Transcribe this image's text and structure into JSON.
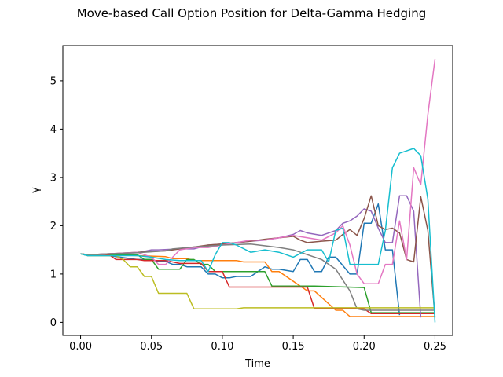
{
  "chart_data": {
    "type": "line",
    "title": "Move-based Call Option Position for Delta-Gamma Hedging",
    "xlabel": "Time",
    "ylabel": "γ",
    "xlim": [
      -0.0125,
      0.2625
    ],
    "ylim": [
      -0.27,
      5.73
    ],
    "xticks": [
      0.0,
      0.05,
      0.1,
      0.15,
      0.2,
      0.25
    ],
    "xtick_labels": [
      "0.00",
      "0.05",
      "0.10",
      "0.15",
      "0.20",
      "0.25"
    ],
    "yticks": [
      0,
      1,
      2,
      3,
      4,
      5
    ],
    "ytick_labels": [
      "0",
      "1",
      "2",
      "3",
      "4",
      "5"
    ],
    "grid": false,
    "legend": "none",
    "series": [
      {
        "color": "#1f77b4",
        "x": [
          0.0,
          0.005,
          0.02,
          0.04,
          0.05,
          0.055,
          0.06,
          0.065,
          0.07,
          0.075,
          0.085,
          0.09,
          0.095,
          0.1,
          0.105,
          0.11,
          0.12,
          0.13,
          0.135,
          0.14,
          0.15,
          0.155,
          0.16,
          0.165,
          0.17,
          0.175,
          0.18,
          0.19,
          0.195,
          0.2,
          0.205,
          0.21,
          0.215,
          0.22,
          0.225
        ],
        "y": [
          1.42,
          1.38,
          1.38,
          1.3,
          1.3,
          1.26,
          1.26,
          1.2,
          1.2,
          1.15,
          1.15,
          1.0,
          1.0,
          0.92,
          0.92,
          0.95,
          0.95,
          1.15,
          1.1,
          1.1,
          1.05,
          1.3,
          1.3,
          1.05,
          1.05,
          1.35,
          1.35,
          1.0,
          1.0,
          2.05,
          2.05,
          2.45,
          1.5,
          1.5,
          0.15
        ]
      },
      {
        "color": "#ff7f0e",
        "x": [
          0.0,
          0.005,
          0.02,
          0.04,
          0.06,
          0.065,
          0.075,
          0.08,
          0.11,
          0.115,
          0.13,
          0.135,
          0.14,
          0.16,
          0.165,
          0.18,
          0.185,
          0.19,
          0.22,
          0.25
        ],
        "y": [
          1.42,
          1.4,
          1.4,
          1.38,
          1.36,
          1.32,
          1.32,
          1.28,
          1.28,
          1.25,
          1.25,
          1.05,
          1.05,
          0.65,
          0.65,
          0.25,
          0.25,
          0.12,
          0.12,
          0.12
        ]
      },
      {
        "color": "#2ca02c",
        "x": [
          0.0,
          0.005,
          0.04,
          0.045,
          0.05,
          0.055,
          0.07,
          0.075,
          0.08,
          0.085,
          0.09,
          0.095,
          0.1,
          0.13,
          0.135,
          0.16,
          0.165,
          0.2,
          0.205,
          0.25
        ],
        "y": [
          1.42,
          1.4,
          1.4,
          1.3,
          1.3,
          1.1,
          1.1,
          1.3,
          1.3,
          1.2,
          1.2,
          1.05,
          1.05,
          1.05,
          0.75,
          0.75,
          0.75,
          0.72,
          0.2,
          0.2
        ]
      },
      {
        "color": "#d62728",
        "x": [
          0.0,
          0.005,
          0.02,
          0.025,
          0.04,
          0.045,
          0.06,
          0.07,
          0.085,
          0.09,
          0.1,
          0.105,
          0.12,
          0.14,
          0.16,
          0.165,
          0.2,
          0.205,
          0.25
        ],
        "y": [
          1.42,
          1.4,
          1.4,
          1.3,
          1.3,
          1.28,
          1.28,
          1.22,
          1.22,
          1.05,
          1.05,
          0.73,
          0.73,
          0.73,
          0.73,
          0.28,
          0.28,
          0.18,
          0.18
        ]
      },
      {
        "color": "#9467bd",
        "x": [
          0.0,
          0.005,
          0.02,
          0.04,
          0.05,
          0.055,
          0.07,
          0.08,
          0.09,
          0.1,
          0.11,
          0.12,
          0.13,
          0.14,
          0.15,
          0.155,
          0.16,
          0.17,
          0.175,
          0.18,
          0.185,
          0.19,
          0.195,
          0.2,
          0.205,
          0.21,
          0.215,
          0.22,
          0.225,
          0.23,
          0.235,
          0.24
        ],
        "y": [
          1.42,
          1.4,
          1.42,
          1.44,
          1.5,
          1.5,
          1.52,
          1.52,
          1.6,
          1.62,
          1.65,
          1.68,
          1.7,
          1.75,
          1.82,
          1.9,
          1.85,
          1.8,
          1.85,
          1.9,
          2.05,
          2.1,
          2.2,
          2.35,
          2.3,
          1.95,
          1.65,
          1.65,
          2.62,
          2.62,
          2.3,
          0.1
        ]
      },
      {
        "color": "#8c564b",
        "x": [
          0.0,
          0.005,
          0.02,
          0.04,
          0.06,
          0.07,
          0.08,
          0.09,
          0.1,
          0.11,
          0.12,
          0.13,
          0.14,
          0.15,
          0.155,
          0.16,
          0.17,
          0.18,
          0.185,
          0.19,
          0.195,
          0.2,
          0.205,
          0.21,
          0.215,
          0.22,
          0.225,
          0.23,
          0.235,
          0.24,
          0.245,
          0.25
        ],
        "y": [
          1.42,
          1.4,
          1.42,
          1.45,
          1.48,
          1.52,
          1.56,
          1.6,
          1.62,
          1.65,
          1.68,
          1.72,
          1.75,
          1.78,
          1.7,
          1.65,
          1.68,
          1.7,
          1.82,
          1.92,
          1.8,
          2.15,
          2.62,
          2.0,
          1.92,
          1.95,
          1.85,
          1.3,
          1.25,
          2.6,
          1.9,
          0.1
        ]
      },
      {
        "color": "#e377c2",
        "x": [
          0.0,
          0.005,
          0.02,
          0.04,
          0.05,
          0.055,
          0.06,
          0.07,
          0.08,
          0.09,
          0.1,
          0.11,
          0.12,
          0.13,
          0.14,
          0.15,
          0.16,
          0.17,
          0.18,
          0.185,
          0.19,
          0.195,
          0.2,
          0.205,
          0.21,
          0.215,
          0.22,
          0.225,
          0.23,
          0.235,
          0.24,
          0.245,
          0.25
        ],
        "y": [
          1.42,
          1.4,
          1.42,
          1.45,
          1.35,
          1.2,
          1.2,
          1.5,
          1.55,
          1.55,
          1.6,
          1.65,
          1.7,
          1.7,
          1.75,
          1.8,
          1.75,
          1.7,
          1.85,
          2.0,
          1.6,
          1.0,
          0.8,
          0.8,
          0.8,
          1.2,
          1.2,
          2.1,
          1.3,
          3.2,
          2.85,
          4.3,
          5.45
        ]
      },
      {
        "color": "#7f7f7f",
        "x": [
          0.0,
          0.005,
          0.02,
          0.04,
          0.06,
          0.065,
          0.08,
          0.1,
          0.12,
          0.14,
          0.15,
          0.17,
          0.18,
          0.19,
          0.195,
          0.2,
          0.22,
          0.25
        ],
        "y": [
          1.42,
          1.4,
          1.42,
          1.44,
          1.48,
          1.52,
          1.56,
          1.6,
          1.62,
          1.55,
          1.5,
          1.3,
          1.1,
          0.65,
          0.28,
          0.25,
          0.25,
          0.25
        ]
      },
      {
        "color": "#bcbd22",
        "x": [
          0.0,
          0.005,
          0.025,
          0.03,
          0.035,
          0.04,
          0.045,
          0.05,
          0.055,
          0.075,
          0.08,
          0.11,
          0.115,
          0.2,
          0.25
        ],
        "y": [
          1.42,
          1.38,
          1.38,
          1.3,
          1.15,
          1.15,
          0.95,
          0.95,
          0.6,
          0.6,
          0.28,
          0.28,
          0.3,
          0.3,
          0.3
        ]
      },
      {
        "color": "#17becf",
        "x": [
          0.0,
          0.005,
          0.04,
          0.05,
          0.06,
          0.07,
          0.085,
          0.09,
          0.095,
          0.1,
          0.105,
          0.11,
          0.12,
          0.13,
          0.14,
          0.15,
          0.16,
          0.17,
          0.175,
          0.18,
          0.185,
          0.19,
          0.2,
          0.21,
          0.215,
          0.22,
          0.225,
          0.23,
          0.235,
          0.24,
          0.245,
          0.25
        ],
        "y": [
          1.42,
          1.38,
          1.38,
          1.35,
          1.3,
          1.28,
          1.28,
          1.05,
          1.4,
          1.65,
          1.65,
          1.6,
          1.45,
          1.5,
          1.45,
          1.35,
          1.5,
          1.5,
          1.25,
          1.9,
          1.95,
          1.2,
          1.2,
          1.2,
          1.9,
          3.2,
          3.5,
          3.55,
          3.6,
          3.45,
          2.55,
          0.0
        ]
      }
    ]
  }
}
